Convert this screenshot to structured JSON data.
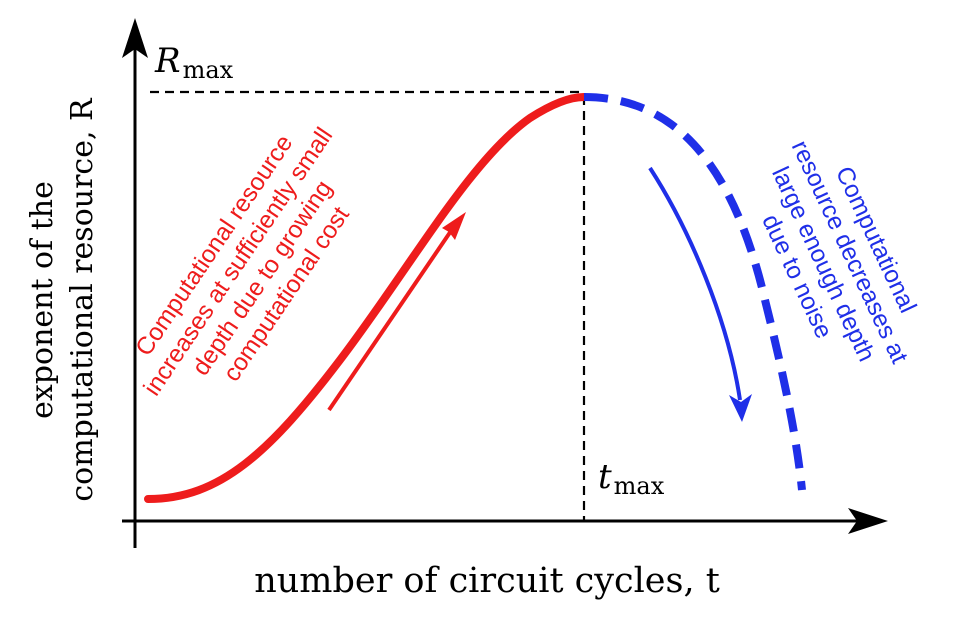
{
  "axes": {
    "x_label": "number of circuit cycles, t",
    "y_label_line1": "exponent of the",
    "y_label_line2": "computational resource, R",
    "r_max_main": "R",
    "r_max_sub": "max",
    "t_max_main": "t",
    "t_max_sub": "max"
  },
  "annotations": {
    "increase": [
      "Computational resource",
      "increases at sufficiently small",
      "depth due to growing",
      "computational cost"
    ],
    "decrease": [
      "Computational",
      "resource decreases at",
      "large enough depth",
      "due to noise"
    ]
  },
  "colors": {
    "increase": "#ee1c1c",
    "decrease": "#1f2fe8",
    "axis": "#000000"
  }
}
